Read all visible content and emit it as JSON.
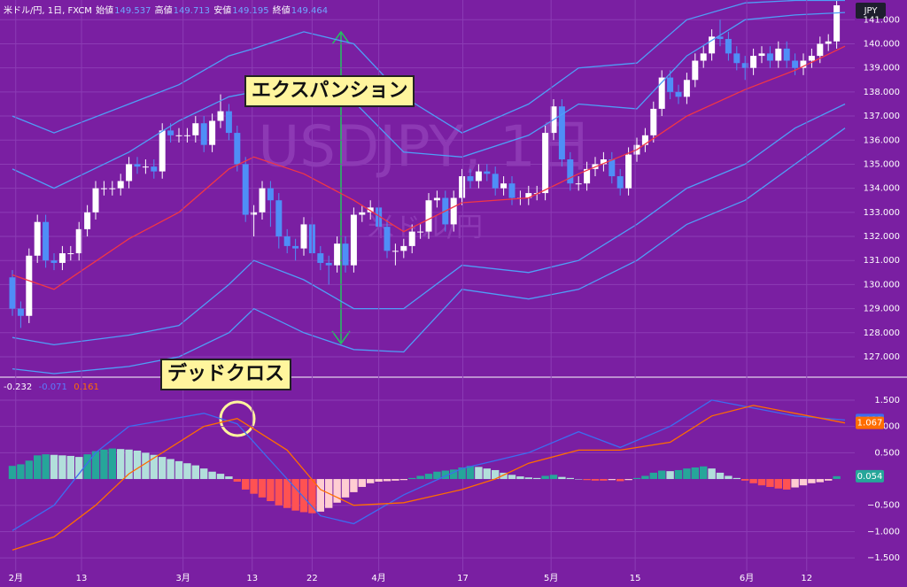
{
  "chart_data": [
    {
      "type": "candlestick",
      "title": "米ドル/円, 1日, FXCM",
      "summary": [
        {
          "name": "始値",
          "value": 149.537
        },
        {
          "name": "高値",
          "value": 149.713
        },
        {
          "name": "安値",
          "value": 149.195
        },
        {
          "name": "終値",
          "value": 149.464
        }
      ],
      "currency": "JPY",
      "watermark": [
        "USDJPY, 1日",
        "米ドル/円"
      ],
      "annotations": [
        "エクスパンション"
      ],
      "up_color": "#ffffff",
      "down_color": "#4f8ef7",
      "open": [
        130.3,
        129.0,
        128.7,
        131.2,
        132.6,
        131.0,
        130.9,
        131.3,
        131.3,
        132.3,
        133.0,
        134.0,
        134.0,
        134.0,
        134.3,
        135.0,
        134.9,
        134.9,
        134.7,
        136.4,
        136.2,
        136.2,
        136.2,
        136.7,
        135.8,
        136.8,
        137.2,
        136.3,
        135.0,
        132.9,
        133.0,
        134.0,
        133.5,
        132.0,
        131.6,
        131.5,
        132.5,
        131.3,
        130.9,
        130.8,
        131.7,
        130.8,
        132.9,
        133.0,
        133.2,
        132.4,
        131.4,
        131.4,
        131.6,
        132.2,
        132.2,
        133.5,
        133.6,
        132.5,
        133.6,
        134.5,
        134.3,
        134.7,
        134.6,
        134.0,
        134.2,
        133.6,
        133.6,
        133.8,
        133.8,
        136.3,
        137.4,
        135.2,
        134.2,
        134.2,
        134.8,
        135.0,
        135.2,
        134.5,
        134.0,
        135.4,
        135.8,
        136.2,
        137.3,
        138.6,
        138.0,
        137.8,
        138.5,
        139.3,
        139.6,
        140.3,
        140.2,
        139.6,
        139.2,
        139.0,
        139.5,
        139.6,
        139.3,
        139.8,
        139.3,
        139.0,
        139.3,
        139.5,
        140.0,
        140.1
      ],
      "high": [
        130.6,
        129.3,
        131.5,
        132.9,
        132.9,
        131.3,
        131.6,
        131.6,
        132.6,
        133.3,
        134.3,
        134.3,
        134.3,
        134.6,
        135.3,
        135.3,
        135.2,
        135.2,
        136.7,
        136.7,
        136.5,
        136.5,
        137.0,
        137.0,
        137.1,
        137.9,
        137.5,
        136.6,
        135.3,
        133.3,
        134.3,
        134.3,
        133.8,
        132.3,
        131.9,
        132.8,
        132.8,
        131.6,
        131.2,
        132.0,
        132.0,
        133.2,
        133.3,
        133.5,
        133.5,
        132.7,
        131.7,
        131.9,
        132.5,
        132.5,
        133.8,
        133.9,
        133.9,
        133.9,
        134.8,
        134.8,
        135.0,
        135.0,
        134.9,
        134.5,
        134.5,
        133.9,
        134.1,
        134.1,
        136.6,
        137.7,
        137.7,
        135.5,
        134.5,
        135.1,
        135.3,
        135.5,
        135.5,
        134.8,
        135.7,
        136.1,
        136.5,
        137.6,
        138.9,
        138.9,
        138.3,
        138.8,
        139.6,
        139.9,
        140.6,
        141.0,
        140.5,
        139.9,
        139.5,
        139.8,
        139.9,
        139.9,
        140.1,
        140.1,
        139.6,
        139.6,
        139.8,
        140.3,
        140.4,
        141.8
      ],
      "low": [
        128.7,
        128.2,
        128.4,
        130.9,
        130.7,
        130.6,
        130.6,
        131.0,
        131.0,
        132.0,
        132.7,
        133.7,
        133.7,
        133.7,
        134.0,
        134.6,
        134.6,
        134.4,
        134.4,
        135.9,
        135.9,
        135.9,
        135.9,
        135.5,
        135.5,
        136.5,
        136.0,
        134.7,
        132.6,
        132.0,
        132.7,
        132.4,
        131.5,
        131.3,
        131.0,
        131.2,
        131.0,
        130.6,
        130.0,
        130.5,
        130.5,
        130.5,
        132.6,
        132.7,
        132.1,
        131.1,
        130.8,
        131.1,
        131.3,
        131.9,
        131.9,
        133.2,
        132.2,
        132.2,
        133.3,
        134.0,
        134.0,
        134.3,
        133.7,
        133.7,
        133.3,
        133.3,
        133.3,
        133.5,
        133.5,
        136.0,
        134.9,
        133.9,
        133.9,
        133.9,
        134.5,
        134.7,
        134.2,
        133.7,
        133.7,
        135.1,
        135.5,
        135.9,
        137.0,
        137.7,
        137.5,
        137.5,
        138.2,
        139.0,
        139.3,
        139.9,
        139.3,
        138.9,
        138.5,
        138.7,
        139.2,
        139.0,
        139.0,
        139.0,
        138.7,
        138.7,
        139.0,
        139.2,
        139.7,
        139.8
      ],
      "close": [
        129.0,
        128.7,
        131.2,
        132.6,
        131.0,
        130.9,
        131.3,
        131.3,
        132.3,
        133.0,
        134.0,
        134.0,
        134.0,
        134.3,
        135.0,
        134.9,
        134.9,
        134.7,
        136.4,
        136.2,
        136.2,
        136.2,
        136.7,
        135.8,
        136.8,
        137.2,
        136.3,
        135.0,
        132.9,
        133.0,
        134.0,
        133.5,
        132.0,
        131.6,
        131.5,
        132.5,
        131.3,
        130.9,
        130.8,
        131.7,
        130.8,
        132.9,
        133.0,
        133.2,
        132.4,
        131.4,
        131.4,
        131.6,
        132.2,
        132.2,
        133.5,
        133.6,
        132.5,
        133.6,
        134.5,
        134.3,
        134.7,
        134.6,
        134.0,
        134.2,
        133.6,
        133.6,
        133.8,
        133.8,
        136.3,
        137.4,
        135.2,
        134.2,
        134.2,
        134.8,
        135.0,
        135.2,
        134.5,
        134.0,
        135.4,
        135.8,
        136.2,
        137.3,
        138.6,
        138.0,
        137.8,
        138.5,
        139.3,
        139.6,
        140.3,
        140.2,
        139.6,
        139.2,
        139.0,
        139.5,
        139.6,
        139.3,
        139.8,
        139.3,
        139.0,
        139.3,
        139.5,
        140.0,
        140.1,
        141.6
      ],
      "series": [
        {
          "color": "#4f9ef7",
          "x": [
            0,
            5,
            14,
            20,
            26,
            29,
            35,
            41,
            47,
            54,
            62,
            68,
            75,
            81,
            88,
            94,
            100
          ],
          "values": [
            137.0,
            136.3,
            137.5,
            138.3,
            139.5,
            139.8,
            140.5,
            140.0,
            137.8,
            136.3,
            137.5,
            139.0,
            139.2,
            141.0,
            141.7,
            141.8,
            141.8
          ]
        },
        {
          "color": "#4f9ef7",
          "x": [
            0,
            5,
            14,
            20,
            26,
            29,
            35,
            41,
            47,
            54,
            62,
            68,
            75,
            81,
            88,
            94,
            100
          ],
          "values": [
            134.8,
            134.0,
            135.5,
            136.8,
            137.8,
            138.0,
            138.4,
            137.6,
            135.5,
            135.3,
            136.2,
            137.5,
            137.3,
            139.5,
            141.0,
            141.2,
            141.3
          ]
        },
        {
          "color": "#f23645",
          "x": [
            0,
            5,
            14,
            20,
            26,
            29,
            35,
            41,
            47,
            54,
            62,
            68,
            75,
            81,
            88,
            94,
            100
          ],
          "values": [
            130.4,
            129.8,
            131.9,
            133.0,
            134.8,
            135.3,
            134.6,
            133.5,
            132.2,
            133.4,
            133.6,
            134.6,
            135.6,
            137.0,
            138.1,
            138.9,
            139.9
          ]
        },
        {
          "color": "#4f9ef7",
          "x": [
            0,
            5,
            14,
            20,
            26,
            29,
            35,
            41,
            47,
            54,
            62,
            68,
            75,
            81,
            88,
            94,
            100
          ],
          "values": [
            127.8,
            127.5,
            127.9,
            128.3,
            130.0,
            131.0,
            130.2,
            129.0,
            129.0,
            130.8,
            130.5,
            131.0,
            132.5,
            134.0,
            135.0,
            136.5,
            137.5
          ]
        },
        {
          "color": "#4f9ef7",
          "x": [
            0,
            5,
            14,
            20,
            26,
            29,
            35,
            41,
            47,
            54,
            62,
            68,
            75,
            81,
            88,
            94,
            100
          ],
          "values": [
            126.5,
            126.3,
            126.6,
            127.0,
            128.0,
            129.0,
            128.0,
            127.3,
            127.2,
            129.8,
            129.4,
            129.8,
            131.0,
            132.5,
            133.5,
            135.0,
            136.5
          ]
        }
      ],
      "xlim": [
        -1.49,
        101.17
      ],
      "ylim": [
        126.19,
        141.82
      ],
      "yticks": [
        {
          "value": 127,
          "label": "127.000"
        },
        {
          "value": 128,
          "label": "128.000"
        },
        {
          "value": 129,
          "label": "129.000"
        },
        {
          "value": 130,
          "label": "130.000"
        },
        {
          "value": 131,
          "label": "131.000"
        },
        {
          "value": 132,
          "label": "132.000"
        },
        {
          "value": 133,
          "label": "133.000"
        },
        {
          "value": 134,
          "label": "134.000"
        },
        {
          "value": 135,
          "label": "135.000"
        },
        {
          "value": 136,
          "label": "136.000"
        },
        {
          "value": 137,
          "label": "137.000"
        },
        {
          "value": 138,
          "label": "138.000"
        },
        {
          "value": 139,
          "label": "139.000"
        },
        {
          "value": 140,
          "label": "140.000"
        },
        {
          "value": 141,
          "label": "141.000"
        }
      ],
      "grid": true
    },
    {
      "type": "bar",
      "annotations": [
        "デッドクロス"
      ],
      "legend": [
        {
          "value": -0.232,
          "color": "#ffffff"
        },
        {
          "value": -0.071,
          "color": "#5b7cff"
        },
        {
          "value": 0.161,
          "color": "#ff6d00"
        }
      ],
      "colors": [
        "#26a69a",
        "#b2dfdb",
        "#ff5252",
        "#ffcdd2"
      ],
      "values": [
        0.25,
        0.28,
        0.35,
        0.45,
        0.47,
        0.46,
        0.45,
        0.44,
        0.42,
        0.47,
        0.53,
        0.56,
        0.58,
        0.57,
        0.56,
        0.54,
        0.5,
        0.46,
        0.42,
        0.38,
        0.34,
        0.3,
        0.26,
        0.2,
        0.14,
        0.1,
        0.05,
        -0.05,
        -0.2,
        -0.28,
        -0.35,
        -0.42,
        -0.5,
        -0.55,
        -0.6,
        -0.63,
        -0.65,
        -0.62,
        -0.55,
        -0.45,
        -0.35,
        -0.25,
        -0.15,
        -0.08,
        -0.05,
        -0.04,
        -0.03,
        -0.02,
        0.02,
        0.06,
        0.1,
        0.14,
        0.16,
        0.18,
        0.22,
        0.25,
        0.23,
        0.2,
        0.17,
        0.12,
        0.08,
        0.05,
        0.03,
        0.02,
        0.06,
        0.08,
        0.04,
        0.02,
        0.0,
        -0.02,
        -0.03,
        -0.03,
        -0.02,
        -0.04,
        -0.02,
        0.02,
        0.06,
        0.12,
        0.16,
        0.15,
        0.17,
        0.2,
        0.22,
        0.24,
        0.2,
        0.12,
        0.06,
        0.02,
        -0.03,
        -0.08,
        -0.12,
        -0.15,
        -0.18,
        -0.2,
        -0.16,
        -0.12,
        -0.08,
        -0.06,
        -0.03,
        0.054
      ],
      "series": [
        {
          "color": "#3d6cf0",
          "x": [
            0,
            5,
            10,
            14,
            23,
            27,
            33,
            37,
            41,
            47,
            54,
            58,
            62,
            68,
            73,
            79,
            84,
            89,
            94,
            100
          ],
          "values": [
            -0.98,
            -0.5,
            0.5,
            1.0,
            1.25,
            1.05,
            0.0,
            -0.7,
            -0.85,
            -0.3,
            0.2,
            0.35,
            0.5,
            0.9,
            0.6,
            1.0,
            1.5,
            1.35,
            1.2,
            1.122
          ]
        },
        {
          "color": "#ff6d00",
          "x": [
            0,
            5,
            10,
            14,
            23,
            27,
            33,
            37,
            41,
            47,
            54,
            58,
            62,
            68,
            73,
            79,
            84,
            89,
            94,
            100
          ],
          "values": [
            -1.35,
            -1.1,
            -0.5,
            0.1,
            1.0,
            1.15,
            0.55,
            -0.2,
            -0.5,
            -0.45,
            -0.2,
            0.0,
            0.3,
            0.55,
            0.55,
            0.7,
            1.2,
            1.4,
            1.25,
            1.067
          ]
        }
      ],
      "last_values": [
        {
          "value": 1.122,
          "color": "#3d6cf0"
        },
        {
          "value": 1.067,
          "color": "#ff6d00"
        },
        {
          "value": 0.054,
          "color": "#26a69a"
        }
      ],
      "xlim": [
        -1.49,
        101.17
      ],
      "ylim": [
        -1.75,
        1.92
      ],
      "yticks": [
        {
          "value": 1.5,
          "label": "1.500"
        },
        {
          "value": 1,
          "label": "1.000"
        },
        {
          "value": 0.5,
          "label": "0.500"
        },
        {
          "value": -0.5,
          "label": "−0.500"
        },
        {
          "value": -1,
          "label": "−1.000"
        },
        {
          "value": -1.5,
          "label": "−1.500"
        }
      ],
      "xticks": [
        {
          "value": 0.4,
          "label": "2月"
        },
        {
          "value": 8.3,
          "label": "13"
        },
        {
          "value": 20.5,
          "label": "3月"
        },
        {
          "value": 28.8,
          "label": "13"
        },
        {
          "value": 36,
          "label": "22"
        },
        {
          "value": 44,
          "label": "4月"
        },
        {
          "value": 54.1,
          "label": "17"
        },
        {
          "value": 64.7,
          "label": "5月"
        },
        {
          "value": 74.8,
          "label": "15"
        },
        {
          "value": 88.2,
          "label": "6月"
        },
        {
          "value": 95.4,
          "label": "12"
        }
      ],
      "grid": true
    }
  ]
}
